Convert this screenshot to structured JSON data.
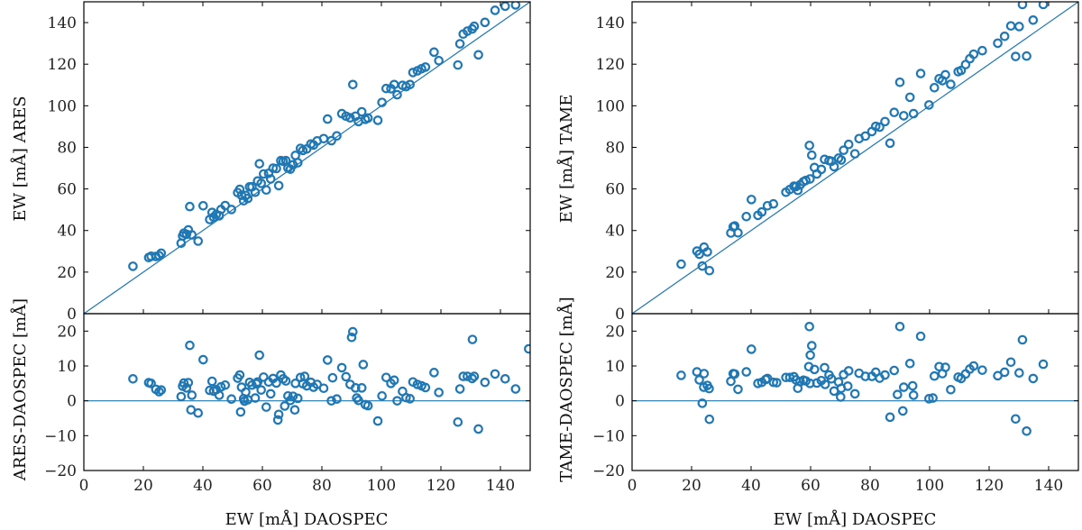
{
  "chart_data": [
    {
      "type": "scatter",
      "panel": "left",
      "marker_color": "#1f77b4",
      "xlabel": "EW [mÅ] DAOSPEC",
      "top": {
        "ylabel": "EW [mÅ] ARES",
        "ylim": [
          0,
          150
        ],
        "yticks": [
          0,
          20,
          40,
          60,
          80,
          100,
          120,
          140
        ],
        "reference": "y = x"
      },
      "bottom": {
        "ylabel": "ARES-DAOSPEC [mÅ]",
        "ylim": [
          -20,
          25
        ],
        "yticks": [
          -20,
          -10,
          0,
          10,
          20
        ],
        "reference": "y = 0"
      },
      "xlim": [
        0,
        150
      ],
      "xticks": [
        0,
        20,
        40,
        60,
        80,
        100,
        120,
        140
      ],
      "x": [
        16.5,
        21.8,
        22.6,
        24.2,
        25.3,
        26.0,
        32.7,
        33.2,
        33.6,
        34.5,
        35.1,
        35.6,
        36.3,
        38.4,
        40.1,
        42.3,
        43.1,
        43.6,
        44.5,
        45.5,
        46.1,
        47.5,
        49.6,
        51.7,
        52.4,
        53.0,
        53.7,
        54.4,
        55.1,
        55.7,
        56.5,
        57.6,
        58.4,
        59.0,
        59.6,
        60.4,
        61.3,
        62.1,
        62.8,
        63.6,
        64.7,
        65.5,
        66.2,
        67.0,
        67.9,
        68.6,
        69.4,
        70.3,
        71.1,
        71.9,
        72.8,
        73.6,
        74.9,
        76.3,
        77.2,
        78.4,
        80.6,
        81.9,
        83.2,
        85.0,
        86.7,
        88.1,
        89.5,
        90.4,
        91.3,
        92.3,
        93.4,
        94.6,
        95.5,
        98.8,
        100.2,
        101.6,
        103.2,
        104.3,
        105.3,
        107.1,
        108.3,
        109.6,
        110.6,
        112.1,
        113.5,
        114.8,
        117.7,
        119.3,
        125.7,
        126.4,
        127.5,
        128.9,
        130.5,
        131.2,
        132.6,
        134.8,
        138.2,
        141.6,
        145.1
      ],
      "y": [
        22.8,
        27.0,
        27.6,
        27.5,
        27.9,
        29.1,
        33.9,
        37.4,
        38.7,
        38.2,
        40.3,
        51.5,
        37.9,
        34.9,
        51.9,
        45.3,
        48.7,
        46.4,
        47.7,
        47.1,
        50.1,
        52.0,
        50.1,
        58.2,
        59.8,
        56.9,
        54.3,
        56.9,
        55.4,
        61.0,
        61.0,
        58.4,
        63.8,
        72.1,
        62.7,
        67.2,
        59.5,
        67.5,
        64.8,
        70.0,
        69.8,
        61.6,
        73.6,
        73.3,
        73.6,
        70.0,
        69.5,
        71.6,
        76.1,
        72.6,
        79.5,
        78.5,
        79.2,
        81.6,
        81.1,
        83.1,
        84.2,
        93.6,
        83.2,
        85.5,
        96.2,
        95.0,
        94.2,
        110.2,
        95.0,
        92.4,
        97.1,
        93.5,
        94.1,
        93.0,
        101.6,
        108.3,
        108.2,
        110.2,
        105.3,
        109.8,
        109.2,
        110.2,
        116.0,
        116.8,
        117.8,
        118.6,
        125.8,
        121.7,
        119.6,
        129.8,
        134.5,
        135.9,
        136.9,
        138.2,
        124.5,
        140.1,
        145.9,
        147.9,
        148.5
      ],
      "residual_x": [
        16.5,
        21.8,
        22.6,
        24.2,
        25.3,
        26.0,
        32.7,
        33.2,
        33.6,
        34.5,
        35.1,
        35.6,
        36.3,
        38.4,
        40.1,
        42.3,
        43.1,
        43.6,
        44.5,
        45.5,
        46.1,
        47.5,
        49.6,
        51.7,
        52.4,
        53.0,
        53.7,
        54.4,
        55.1,
        55.7,
        56.5,
        57.6,
        58.4,
        59.0,
        59.6,
        60.4,
        61.3,
        62.1,
        62.8,
        63.6,
        64.7,
        65.5,
        66.2,
        67.0,
        67.9,
        68.6,
        69.4,
        70.3,
        71.1,
        71.9,
        72.8,
        73.6,
        74.9,
        76.3,
        77.2,
        78.4,
        80.6,
        81.9,
        83.2,
        85.0,
        86.7,
        88.1,
        89.5,
        90.4,
        91.3,
        92.3,
        93.4,
        94.6,
        95.5,
        98.8,
        100.2,
        101.6,
        103.2,
        104.3,
        105.3,
        107.1,
        108.3,
        109.6,
        110.6,
        112.1,
        113.5,
        114.8,
        117.7,
        119.3,
        125.7,
        126.4,
        127.5,
        128.9,
        130.5,
        131.2,
        132.6,
        134.8,
        138.2,
        141.6,
        145.1,
        36.0,
        52.7,
        54.0,
        58.0,
        65.2,
        67.5,
        70.9,
        74.2,
        83.6,
        90.0,
        91.7,
        93.9,
        130.6,
        149.5
      ],
      "residual_y": [
        6.3,
        5.2,
        5.0,
        3.3,
        2.6,
        3.1,
        1.2,
        4.2,
        5.1,
        3.7,
        5.2,
        15.9,
        1.6,
        -3.5,
        11.8,
        3.0,
        5.6,
        2.8,
        3.2,
        1.6,
        4.0,
        4.5,
        0.5,
        6.5,
        7.4,
        3.9,
        0.6,
        2.5,
        0.3,
        5.3,
        4.5,
        0.8,
        5.4,
        13.1,
        3.1,
        6.8,
        -1.8,
        5.4,
        2.0,
        6.4,
        5.1,
        -3.9,
        7.4,
        6.3,
        5.7,
        1.4,
        0.1,
        1.3,
        5.0,
        0.7,
        6.7,
        4.9,
        4.3,
        5.3,
        3.9,
        4.7,
        3.6,
        11.7,
        0.0,
        0.5,
        9.5,
        6.9,
        4.7,
        19.8,
        3.7,
        0.1,
        3.7,
        -1.1,
        -1.4,
        -5.8,
        1.4,
        6.7,
        5.0,
        5.9,
        0.0,
        2.7,
        0.9,
        0.6,
        5.4,
        4.7,
        4.3,
        3.8,
        8.1,
        2.4,
        -6.1,
        3.4,
        7.0,
        7.0,
        6.4,
        7.0,
        -8.1,
        5.3,
        7.7,
        6.3,
        3.4,
        -2.6,
        -3.2,
        -0.1,
        4.9,
        -5.5,
        -1.5,
        -2.6,
        7.0,
        6.6,
        18.2,
        0.8,
        10.4,
        17.6,
        14.9
      ]
    },
    {
      "type": "scatter",
      "panel": "right",
      "marker_color": "#1f77b4",
      "xlabel": "EW [mÅ] DAOSPEC",
      "top": {
        "ylabel": "EW [mÅ] TAME",
        "ylim": [
          0,
          150
        ],
        "yticks": [
          0,
          20,
          40,
          60,
          80,
          100,
          120,
          140
        ],
        "reference": "y = x"
      },
      "bottom": {
        "ylabel": "TAME-DAOSPEC [mÅ]",
        "ylim": [
          -20,
          25
        ],
        "yticks": [
          -20,
          -10,
          0,
          10,
          20
        ],
        "reference": "y = 0"
      },
      "xlim": [
        0,
        150
      ],
      "xticks": [
        0,
        20,
        40,
        60,
        80,
        100,
        120,
        140
      ],
      "x": [
        16.5,
        21.8,
        22.6,
        23.6,
        24.2,
        25.3,
        26.0,
        33.2,
        34.0,
        34.5,
        35.6,
        38.4,
        40.1,
        42.3,
        43.6,
        45.5,
        47.5,
        51.7,
        53.0,
        54.4,
        55.1,
        55.7,
        56.5,
        57.6,
        58.4,
        59.6,
        59.8,
        60.4,
        61.3,
        62.1,
        63.6,
        64.7,
        66.2,
        67.0,
        67.9,
        69.4,
        70.3,
        71.1,
        72.8,
        74.9,
        76.3,
        78.4,
        80.6,
        81.9,
        83.2,
        85.0,
        86.7,
        88.1,
        90.0,
        91.3,
        93.4,
        94.6,
        97.0,
        99.8,
        101.6,
        103.2,
        104.3,
        105.3,
        107.1,
        109.6,
        110.6,
        112.1,
        113.5,
        114.8,
        117.7,
        122.9,
        125.2,
        127.3,
        128.9,
        130.1,
        131.2,
        132.6,
        134.8,
        138.2
      ],
      "y": [
        23.8,
        30.1,
        28.6,
        22.9,
        32.0,
        29.7,
        20.7,
        38.8,
        41.8,
        42.2,
        38.9,
        46.7,
        54.9,
        47.3,
        48.9,
        51.9,
        52.8,
        58.4,
        59.7,
        61.3,
        61.1,
        59.3,
        62.0,
        63.5,
        64.1,
        80.9,
        64.8,
        76.2,
        70.3,
        67.2,
        69.4,
        74.2,
        73.6,
        73.3,
        70.7,
        74.8,
        73.9,
        78.6,
        81.4,
        76.9,
        84.2,
        85.4,
        87.6,
        90.1,
        89.7,
        92.4,
        82.0,
        96.8,
        111.3,
        95.2,
        104.1,
        96.2,
        115.5,
        100.4,
        108.7,
        113.0,
        112.1,
        114.9,
        110.3,
        116.4,
        117.0,
        119.8,
        122.6,
        124.8,
        126.5,
        130.1,
        133.4,
        138.4,
        123.7,
        138.1,
        148.7,
        123.9,
        141.2,
        148.7
      ],
      "residual_x": [
        16.5,
        21.8,
        22.6,
        23.6,
        24.2,
        25.3,
        26.0,
        33.2,
        34.0,
        34.5,
        35.6,
        38.4,
        40.1,
        42.3,
        43.6,
        45.5,
        47.5,
        51.7,
        53.0,
        54.4,
        55.1,
        55.7,
        56.5,
        57.6,
        58.4,
        59.6,
        59.8,
        60.4,
        61.3,
        62.1,
        63.6,
        64.7,
        66.2,
        67.0,
        67.9,
        69.4,
        70.3,
        71.1,
        72.8,
        74.9,
        76.3,
        78.4,
        80.6,
        81.9,
        83.2,
        85.0,
        86.7,
        88.1,
        90.0,
        91.3,
        93.4,
        94.6,
        97.0,
        99.8,
        101.6,
        103.2,
        104.3,
        105.3,
        107.1,
        109.6,
        110.6,
        112.1,
        113.5,
        114.8,
        117.7,
        122.9,
        125.2,
        127.3,
        128.9,
        130.1,
        131.2,
        132.6,
        134.8,
        138.2,
        24.1,
        25.9,
        44.9,
        48.6,
        59.4,
        59.9,
        64.9,
        70.1,
        72.5,
        89.2,
        91.0,
        94.3,
        101.1
      ],
      "residual_y": [
        7.3,
        8.3,
        6.0,
        -0.7,
        7.8,
        4.4,
        -5.3,
        5.6,
        7.8,
        7.7,
        3.3,
        8.3,
        14.8,
        5.0,
        5.3,
        6.4,
        5.3,
        6.7,
        6.7,
        6.9,
        6.0,
        3.6,
        5.5,
        5.9,
        5.7,
        21.3,
        5.0,
        15.8,
        9.0,
        5.1,
        5.8,
        9.5,
        7.4,
        6.3,
        2.8,
        5.4,
        3.6,
        7.5,
        8.6,
        2.0,
        7.9,
        7.0,
        7.0,
        8.2,
        6.5,
        7.4,
        -4.7,
        8.7,
        21.3,
        3.9,
        10.7,
        1.6,
        18.5,
        0.6,
        7.1,
        9.8,
        7.8,
        9.6,
        3.2,
        6.8,
        6.4,
        7.7,
        9.1,
        10.0,
        8.8,
        7.2,
        8.2,
        11.1,
        -5.2,
        8.0,
        17.5,
        -8.7,
        6.4,
        10.5,
        3.9,
        3.5,
        6.1,
        5.2,
        9.8,
        13.1,
        4.7,
        1.1,
        4.2,
        1.8,
        -2.9,
        4.3,
        0.8
      ]
    }
  ]
}
